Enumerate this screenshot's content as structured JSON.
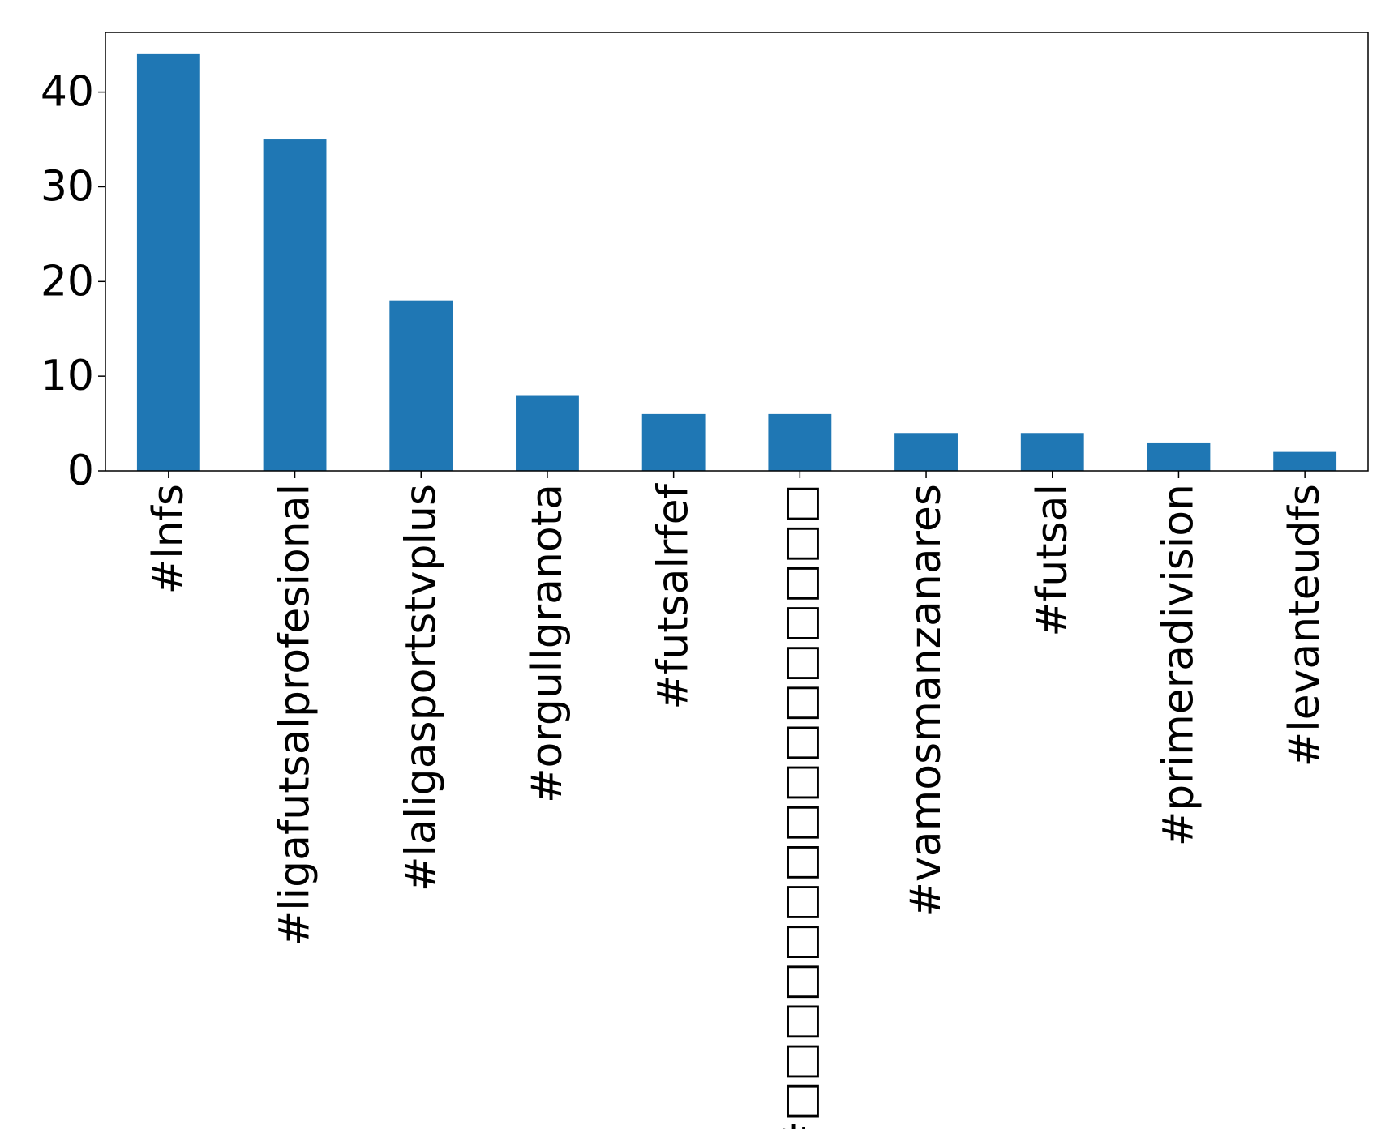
{
  "chart_data": {
    "type": "bar",
    "categories": [
      "#lnfs",
      "#ligafutsalprofesional",
      "#laligasportstvplus",
      "#orgullgranota",
      "#futsalrfef",
      "#□□□□□□□□□□□□□□□□",
      "#vamosmanzanares",
      "#futsal",
      "#primeradivision",
      "#levanteudfs"
    ],
    "values": [
      44,
      35,
      18,
      8,
      6,
      6,
      4,
      4,
      3,
      2
    ],
    "color": "#1f77b4",
    "ylim": [
      0,
      46.3
    ],
    "yticks": [
      0,
      10,
      20,
      30,
      40
    ],
    "grid": false
  }
}
